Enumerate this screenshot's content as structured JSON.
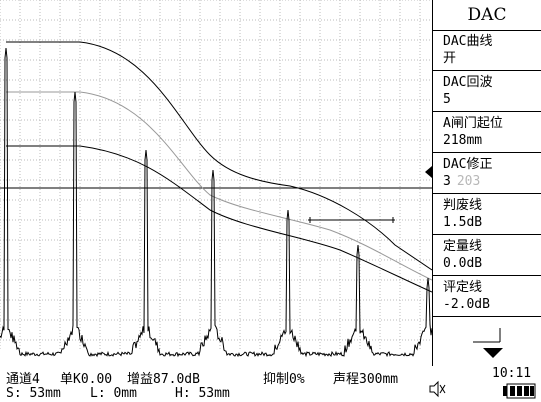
{
  "menu": {
    "title": "DAC",
    "items": [
      {
        "label": "DAC曲线",
        "value": "开"
      },
      {
        "label": "DAC回波",
        "value": "5"
      },
      {
        "label": "A闸门起位",
        "value": "218mm"
      },
      {
        "label": "DAC修正",
        "value": "3",
        "aux": "203"
      },
      {
        "label": "判废线",
        "value": "1.5dB"
      },
      {
        "label": "定量线",
        "value": "0.0dB"
      },
      {
        "label": "评定线",
        "value": "-2.0dB"
      }
    ],
    "selected_index": 3,
    "next_icon": "down-arrow-icon"
  },
  "status": {
    "channel": "通道4",
    "probe": "单K0.00",
    "gain": "增益87.0dB",
    "reject": "抑制0%",
    "range": "声程300mm",
    "s": "S: 53mm",
    "l": "L: 0mm",
    "h": "H: 53mm",
    "time": "10:11",
    "speaker_icon": "speaker-muted-icon",
    "battery_icon": "battery-icon"
  }
}
